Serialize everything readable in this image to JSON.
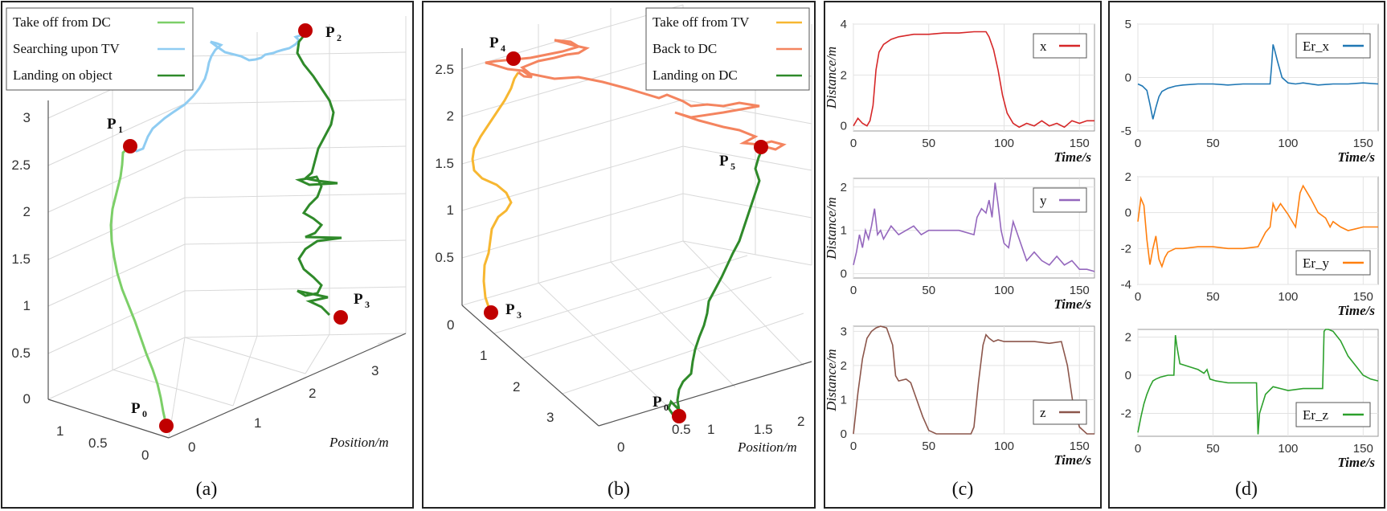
{
  "figure": {
    "captions": [
      "(a)",
      "(b)",
      "(c)",
      "(d)"
    ]
  },
  "chart_data": [
    {
      "type": "line",
      "panel": "(a)",
      "xlabel": "Position/m",
      "z_ticks": [
        "0",
        "0.5",
        "1",
        "1.5",
        "2",
        "2.5",
        "3"
      ],
      "y_ticks": [
        "0",
        "1",
        "2",
        "3"
      ],
      "x_ticks": [
        "0",
        "0.5",
        "1"
      ],
      "legend": [
        {
          "label": "Take off from DC",
          "color": "#7ccf68"
        },
        {
          "label": "Searching upon TV",
          "color": "#8fccf2"
        },
        {
          "label": "Landing on object",
          "color": "#2f8a2a"
        }
      ],
      "points": [
        {
          "name": "P",
          "sub": "0"
        },
        {
          "name": "P",
          "sub": "1"
        },
        {
          "name": "P",
          "sub": "2"
        },
        {
          "name": "P",
          "sub": "3"
        }
      ]
    },
    {
      "type": "line",
      "panel": "(b)",
      "xlabel": "Position/m",
      "z_ticks": [
        "0.5",
        "1",
        "1.5",
        "2",
        "2.5"
      ],
      "y_ticks": [
        "0",
        "1",
        "2",
        "3"
      ],
      "x_ticks": [
        "0",
        "0.5",
        "1",
        "1.5",
        "2"
      ],
      "legend": [
        {
          "label": "Take off from TV",
          "color": "#f7b731"
        },
        {
          "label": "Back to DC",
          "color": "#f4845f"
        },
        {
          "label": "Landing on DC",
          "color": "#2f8a2a"
        }
      ],
      "points": [
        {
          "name": "P",
          "sub": "0"
        },
        {
          "name": "P",
          "sub": "3"
        },
        {
          "name": "P",
          "sub": "4"
        },
        {
          "name": "P",
          "sub": "5"
        }
      ]
    },
    {
      "type": "line",
      "panel": "(c)",
      "subplots": [
        {
          "legend": "x",
          "color": "#d62728",
          "ylabel": "Distance/m",
          "xlabel": "Time/s",
          "yticks": [
            "0",
            "2",
            "4"
          ],
          "xticks": [
            "0",
            "50",
            "100",
            "150"
          ],
          "ylim": [
            -0.2,
            4
          ],
          "xlim": [
            0,
            160
          ],
          "x": [
            0,
            3,
            6,
            9,
            11,
            13,
            15,
            17,
            20,
            25,
            30,
            40,
            50,
            60,
            70,
            80,
            88,
            90,
            93,
            96,
            99,
            102,
            106,
            110,
            115,
            120,
            125,
            130,
            135,
            140,
            145,
            150,
            155,
            160
          ],
          "y": [
            0,
            0.3,
            0.1,
            0,
            0.2,
            0.8,
            2.2,
            2.9,
            3.2,
            3.4,
            3.5,
            3.6,
            3.6,
            3.65,
            3.65,
            3.7,
            3.7,
            3.5,
            3.0,
            2.2,
            1.2,
            0.5,
            0.1,
            -0.05,
            0.1,
            0.0,
            0.2,
            0.0,
            0.1,
            -0.05,
            0.2,
            0.1,
            0.2,
            0.2
          ]
        },
        {
          "legend": "y",
          "color": "#9467bd",
          "ylabel": "Distance/m",
          "xlabel": "Time/s",
          "yticks": [
            "0",
            "1",
            "2"
          ],
          "xticks": [
            "0",
            "50",
            "100",
            "150"
          ],
          "ylim": [
            -0.1,
            2.2
          ],
          "xlim": [
            0,
            160
          ],
          "x": [
            0,
            2,
            4,
            6,
            8,
            10,
            12,
            14,
            16,
            18,
            20,
            25,
            30,
            35,
            40,
            45,
            50,
            55,
            60,
            70,
            80,
            82,
            85,
            88,
            90,
            92,
            94,
            96,
            98,
            100,
            103,
            106,
            110,
            115,
            120,
            125,
            130,
            135,
            140,
            145,
            150,
            155,
            160
          ],
          "y": [
            0.2,
            0.5,
            0.9,
            0.6,
            1.0,
            0.8,
            1.1,
            1.5,
            0.9,
            1.0,
            0.8,
            1.1,
            0.9,
            1.0,
            1.1,
            0.9,
            1.0,
            1.0,
            1.0,
            1.0,
            0.9,
            1.3,
            1.5,
            1.4,
            1.7,
            1.3,
            2.1,
            1.6,
            1.0,
            0.7,
            0.6,
            1.2,
            0.8,
            0.3,
            0.5,
            0.3,
            0.2,
            0.4,
            0.2,
            0.3,
            0.1,
            0.1,
            0.05
          ]
        },
        {
          "legend": "z",
          "color": "#8c564b",
          "ylabel": "Distance/m",
          "xlabel": "Time/s",
          "yticks": [
            "0",
            "1",
            "2",
            "3"
          ],
          "xticks": [
            "0",
            "50",
            "100",
            "150"
          ],
          "ylim": [
            0,
            3.15
          ],
          "xlim": [
            0,
            160
          ],
          "x": [
            0,
            3,
            6,
            9,
            12,
            15,
            18,
            22,
            26,
            28,
            30,
            35,
            38,
            42,
            46,
            50,
            55,
            60,
            70,
            78,
            80,
            83,
            86,
            88,
            90,
            93,
            96,
            100,
            110,
            120,
            130,
            138,
            142,
            146,
            150,
            155,
            160
          ],
          "y": [
            0,
            1.2,
            2.2,
            2.8,
            3.0,
            3.1,
            3.15,
            3.1,
            2.6,
            1.7,
            1.55,
            1.6,
            1.5,
            1.0,
            0.5,
            0.1,
            0,
            0,
            0,
            0,
            0.2,
            1.5,
            2.6,
            2.9,
            2.8,
            2.7,
            2.75,
            2.7,
            2.7,
            2.7,
            2.65,
            2.7,
            2.0,
            0.8,
            0.2,
            0,
            0
          ]
        }
      ]
    },
    {
      "type": "line",
      "panel": "(d)",
      "subplots": [
        {
          "legend": "Er_x",
          "color": "#1f77b4",
          "xlabel": "Time/s",
          "yticks": [
            "-5",
            "0",
            "5"
          ],
          "xticks": [
            "0",
            "50",
            "100",
            "150"
          ],
          "ylim": [
            -5,
            5
          ],
          "xlim": [
            0,
            160
          ],
          "x": [
            0,
            3,
            6,
            8,
            10,
            12,
            14,
            16,
            20,
            25,
            30,
            40,
            50,
            60,
            70,
            80,
            88,
            89,
            90,
            91,
            93,
            96,
            100,
            105,
            110,
            120,
            130,
            140,
            150,
            160
          ],
          "y": [
            -0.6,
            -0.8,
            -1.2,
            -2.5,
            -3.9,
            -2.8,
            -1.8,
            -1.3,
            -1.0,
            -0.8,
            -0.7,
            -0.6,
            -0.6,
            -0.7,
            -0.6,
            -0.6,
            -0.6,
            1.0,
            3.1,
            2.6,
            1.5,
            0.0,
            -0.5,
            -0.6,
            -0.5,
            -0.7,
            -0.6,
            -0.6,
            -0.5,
            -0.6
          ]
        },
        {
          "legend": "Er_y",
          "color": "#ff7f0e",
          "xlabel": "Time/s",
          "yticks": [
            "-4",
            "-2",
            "0",
            "2"
          ],
          "xticks": [
            "0",
            "50",
            "100",
            "150"
          ],
          "ylim": [
            -4,
            2
          ],
          "xlim": [
            0,
            160
          ],
          "x": [
            0,
            2,
            4,
            6,
            8,
            10,
            12,
            14,
            16,
            18,
            20,
            25,
            30,
            40,
            50,
            60,
            70,
            80,
            85,
            88,
            90,
            92,
            95,
            100,
            105,
            108,
            110,
            115,
            120,
            125,
            128,
            130,
            135,
            140,
            145,
            150,
            160
          ],
          "y": [
            -0.5,
            0.8,
            0.4,
            -1.5,
            -2.9,
            -2.0,
            -1.3,
            -2.6,
            -3.0,
            -2.5,
            -2.2,
            -2.0,
            -2.0,
            -1.9,
            -1.9,
            -2.0,
            -2.0,
            -1.9,
            -1.1,
            -0.8,
            0.5,
            0.1,
            0.5,
            -0.1,
            -0.8,
            1.1,
            1.5,
            0.8,
            0.0,
            -0.3,
            -0.8,
            -0.5,
            -0.8,
            -1.0,
            -0.9,
            -0.8,
            -0.8
          ]
        },
        {
          "legend": "Er_z",
          "color": "#2ca02c",
          "xlabel": "Time/s",
          "yticks": [
            "-2",
            "0",
            "2"
          ],
          "xticks": [
            "0",
            "50",
            "100",
            "150"
          ],
          "ylim": [
            -3.2,
            2.4
          ],
          "xlim": [
            0,
            160
          ],
          "x": [
            0,
            2,
            4,
            6,
            8,
            10,
            12,
            15,
            20,
            24,
            25,
            26,
            28,
            32,
            36,
            40,
            44,
            46,
            48,
            52,
            60,
            70,
            79,
            80,
            81,
            85,
            90,
            95,
            100,
            110,
            123,
            124,
            125,
            127,
            130,
            135,
            140,
            145,
            150,
            155,
            160
          ],
          "y": [
            -3.0,
            -2.2,
            -1.5,
            -1.0,
            -0.6,
            -0.3,
            -0.2,
            -0.1,
            0.0,
            0.0,
            2.1,
            1.5,
            0.6,
            0.5,
            0.4,
            0.3,
            0.1,
            0.3,
            -0.2,
            -0.3,
            -0.4,
            -0.4,
            -0.4,
            -3.1,
            -2.0,
            -1.0,
            -0.6,
            -0.7,
            -0.8,
            -0.7,
            -0.7,
            2.3,
            2.4,
            2.4,
            2.3,
            1.8,
            1.0,
            0.5,
            0.0,
            -0.2,
            -0.3
          ]
        }
      ]
    }
  ]
}
